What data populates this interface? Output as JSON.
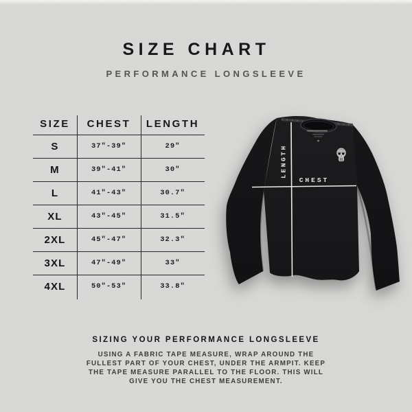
{
  "header": {
    "title": "SIZE CHART",
    "subtitle": "PERFORMANCE LONGSLEEVE"
  },
  "size_table": {
    "columns": [
      "SIZE",
      "CHEST",
      "LENGTH"
    ],
    "rows": [
      [
        "S",
        "37\"-39\"",
        "29\""
      ],
      [
        "M",
        "39\"-41\"",
        "30\""
      ],
      [
        "L",
        "41\"-43\"",
        "30.7\""
      ],
      [
        "XL",
        "43\"-45\"",
        "31.5\""
      ],
      [
        "2XL",
        "45\"-47\"",
        "32.3\""
      ],
      [
        "3XL",
        "47\"-49\"",
        "33\""
      ],
      [
        "4XL",
        "50\"-53\"",
        "33.8\""
      ]
    ]
  },
  "product": {
    "length_label": "LENGTH",
    "chest_label": "CHEST",
    "logo_icon": "skull-icon",
    "shirt_color": "#1a1a1c",
    "measure_line_color": "#ececea"
  },
  "sizing_guide": {
    "heading": "SIZING YOUR PERFORMANCE LONGSLEEVE",
    "body": "USING A FABRIC TAPE MEASURE, WRAP AROUND THE FULLEST PART OF YOUR CHEST, UNDER THE ARMPIT. KEEP THE TAPE MEASURE PARALLEL TO THE FLOOR. THIS WILL GIVE YOU THE CHEST MEASUREMENT."
  },
  "colors": {
    "background": "#d8d8d6",
    "text_primary": "#181818",
    "text_secondary": "#55544f",
    "table_line": "#262626",
    "body_text": "#3c3c3a"
  }
}
